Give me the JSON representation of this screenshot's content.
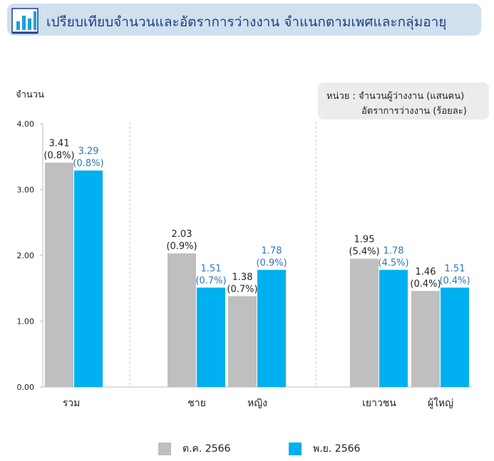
{
  "header": {
    "title": "เปรียบเทียบจำนวนและอัตราการว่างงาน จำแนกตามเพศและกลุ่มอายุ"
  },
  "unit_box": {
    "line1": "หน่วย : จำนวนผู้ว่างงาน (แสนคน)",
    "line2": "อัตราการว่างงาน (ร้อยละ)"
  },
  "colors": {
    "oct": "#bfbfbf",
    "nov": "#00b0f0",
    "nov_label": "#2e75b6",
    "title_bg": "#cfe0ef",
    "title_text": "#1f3f82"
  },
  "chart_data": {
    "type": "bar",
    "ylabel": "จำนวน",
    "ylim": [
      0,
      4
    ],
    "yticks": [
      "0.00",
      "1.00",
      "2.00",
      "3.00",
      "4.00"
    ],
    "categories": [
      "รวม",
      "ชาย",
      "หญิง",
      "เยาวชน",
      "ผู้ใหญ่"
    ],
    "groups_separated_after": [
      "รวม",
      "หญิง"
    ],
    "series": [
      {
        "name": "ต.ค. 2566",
        "values": [
          3.41,
          2.03,
          1.38,
          1.95,
          1.46
        ],
        "value_labels": [
          "3.41",
          "2.03",
          "1.38",
          "1.95",
          "1.46"
        ],
        "rate_labels": [
          "(0.8%)",
          "(0.9%)",
          "(0.7%)",
          "(5.4%)",
          "(0.4%)"
        ]
      },
      {
        "name": "พ.ย. 2566",
        "values": [
          3.29,
          1.51,
          1.78,
          1.78,
          1.51
        ],
        "value_labels": [
          "3.29",
          "1.51",
          "1.78",
          "1.78",
          "1.51"
        ],
        "rate_labels": [
          "(0.8%)",
          "(0.7%)",
          "(0.9%)",
          "(4.5%)",
          "(0.4%)"
        ]
      }
    ],
    "legend_position": "bottom"
  }
}
